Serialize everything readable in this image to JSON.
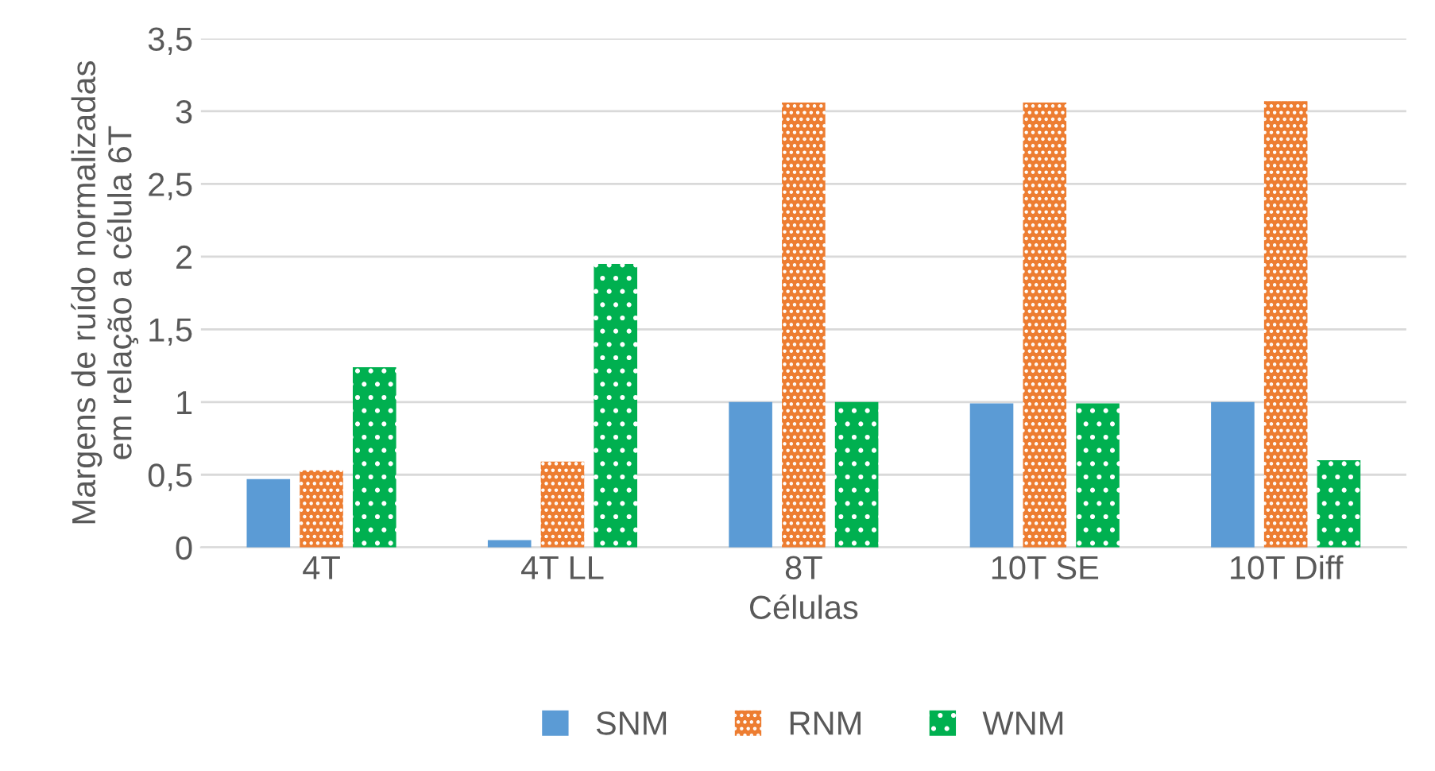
{
  "chart_data": {
    "type": "bar",
    "xlabel": "Células",
    "ylabel": "Margens de ruído normalizadas\nem relação a célula 6T",
    "categories": [
      "4T",
      "4T LL",
      "8T",
      "10T SE",
      "10T Diff"
    ],
    "series": [
      {
        "name": "SNM",
        "color": "#5b9bd5",
        "values": [
          0.47,
          0.05,
          1.0,
          0.99,
          1.0
        ]
      },
      {
        "name": "RNM",
        "color": "#ed7d31",
        "values": [
          0.53,
          0.59,
          3.06,
          3.06,
          3.07
        ]
      },
      {
        "name": "WNM",
        "color": "#00b050",
        "values": [
          1.24,
          1.95,
          1.0,
          0.99,
          0.6
        ]
      }
    ],
    "ylim": [
      0,
      3.5
    ],
    "yticks": [
      0,
      {
        "value": 0.5,
        "label": "0,5"
      },
      1,
      {
        "value": 1.5,
        "label": "1,5"
      },
      2,
      {
        "value": 2.5,
        "label": "2,5"
      },
      3,
      {
        "value": 3.5,
        "label": "3,5"
      }
    ],
    "grid": "y",
    "legend": "bottom"
  }
}
